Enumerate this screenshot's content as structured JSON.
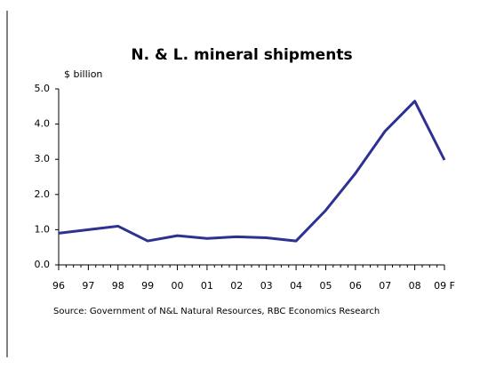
{
  "chart_data": {
    "type": "line",
    "title": "N. & L. mineral shipments",
    "y_label": "$ billion",
    "categories": [
      "96",
      "97",
      "98",
      "99",
      "00",
      "01",
      "02",
      "03",
      "04",
      "05",
      "06",
      "07",
      "08",
      "09 F"
    ],
    "series": [
      {
        "name": "N. & L. mineral shipments",
        "color": "#2e3192",
        "values": [
          0.9,
          1.0,
          1.1,
          0.68,
          0.83,
          0.75,
          0.8,
          0.77,
          0.68,
          1.55,
          2.6,
          3.8,
          4.65,
          2.98
        ]
      }
    ],
    "ylim": [
      0,
      5
    ],
    "yticks": [
      {
        "value": 0,
        "label": "0.0"
      },
      {
        "value": 1,
        "label": "1.0"
      },
      {
        "value": 2,
        "label": "2.0"
      },
      {
        "value": 3,
        "label": "3.0"
      },
      {
        "value": 4,
        "label": "4.0"
      },
      {
        "value": 5,
        "label": "5.0"
      }
    ],
    "source": "Source: Government of N&L Natural Resources, RBC Economics Research"
  }
}
